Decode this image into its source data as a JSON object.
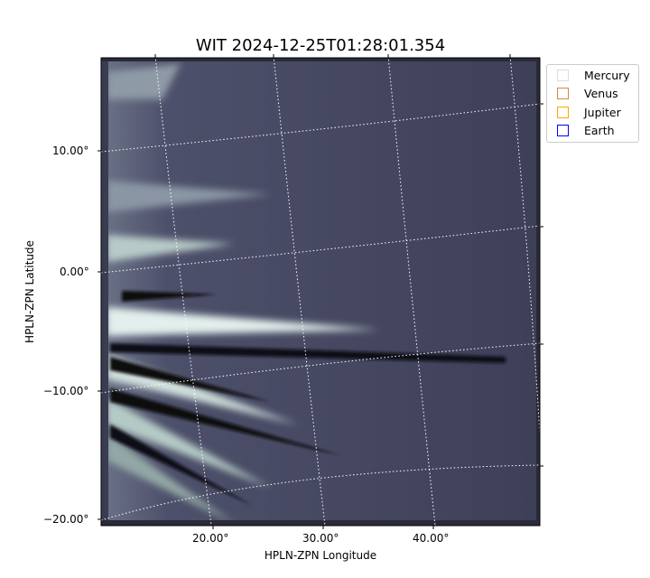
{
  "chart_data": {
    "type": "heatmap",
    "title": "WIT 2024-12-25T01:28:01.354",
    "xlabel": "HPLN-ZPN Longitude",
    "ylabel": "HPLN-ZPN Latitude",
    "xticks": [
      "20.00°",
      "30.00°",
      "40.00°"
    ],
    "yticks": [
      "10.00°",
      "0.00°",
      "−10.00°",
      "−20.00°"
    ],
    "grid": true,
    "colormap": "bone-like (dark blue-gray to pale cyan)",
    "legend_position": "outside-top-right",
    "legend": [
      {
        "name": "Mercury",
        "color": "#dcdcdc"
      },
      {
        "name": "Venus",
        "color": "#d2884a"
      },
      {
        "name": "Jupiter",
        "color": "#ffa500"
      },
      {
        "name": "Earth",
        "color": "#0000ff"
      }
    ]
  }
}
